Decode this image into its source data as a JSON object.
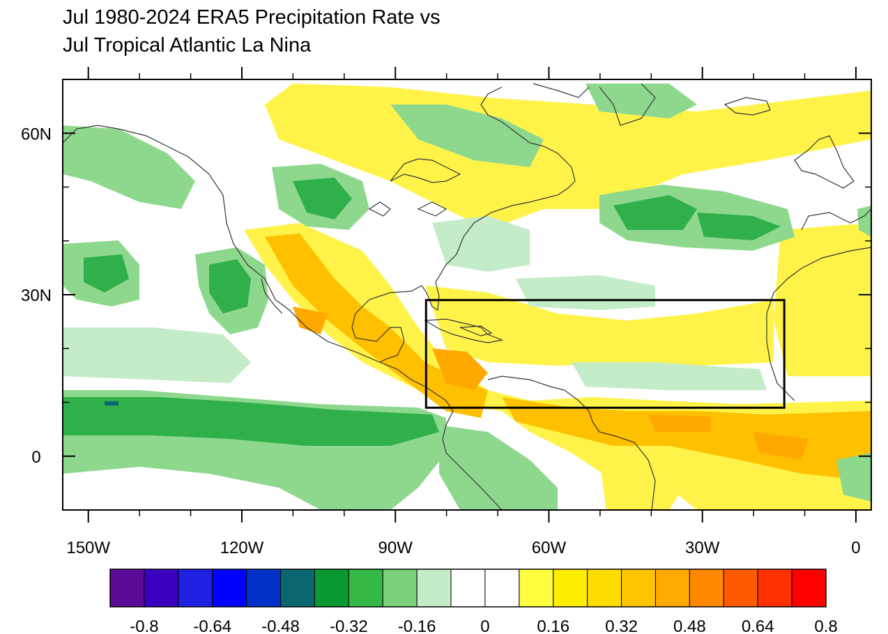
{
  "title": {
    "line1": "Jul 1980-2024 ERA5 Precipitation Rate vs",
    "line2": "Jul Tropical Atlantic La Nina"
  },
  "map": {
    "projection": "cylindrical-equidistant",
    "lon_range": [
      -155,
      3
    ],
    "lat_range": [
      -10,
      70
    ],
    "x_ticks": [
      {
        "lon": -150,
        "label": "150W"
      },
      {
        "lon": -120,
        "label": "120W"
      },
      {
        "lon": -90,
        "label": "90W"
      },
      {
        "lon": -60,
        "label": "60W"
      },
      {
        "lon": -30,
        "label": "30W"
      },
      {
        "lon": 0,
        "label": "0"
      }
    ],
    "y_ticks": [
      {
        "lat": 60,
        "label": "60N"
      },
      {
        "lat": 30,
        "label": "30N"
      },
      {
        "lat": 0,
        "label": "0"
      }
    ],
    "region_box": {
      "lon_min": -84,
      "lon_max": -14,
      "lat_min": 9,
      "lat_max": 29
    }
  },
  "colorbar": {
    "colors": [
      "#5a0a96",
      "#3a00c0",
      "#2020e0",
      "#0000ff",
      "#0030c8",
      "#0a6670",
      "#089a30",
      "#34b846",
      "#78d078",
      "#c4ecc8",
      "#ffffff",
      "#ffffff",
      "#ffff40",
      "#ffee00",
      "#ffdc00",
      "#ffc400",
      "#ffaa00",
      "#ff8800",
      "#ff5a00",
      "#ff3000",
      "#ff0000"
    ],
    "labels": [
      "-0.8",
      "-0.64",
      "-0.48",
      "-0.32",
      "-0.16",
      "0",
      "0.16",
      "0.32",
      "0.48",
      "0.64",
      "0.8"
    ]
  }
}
